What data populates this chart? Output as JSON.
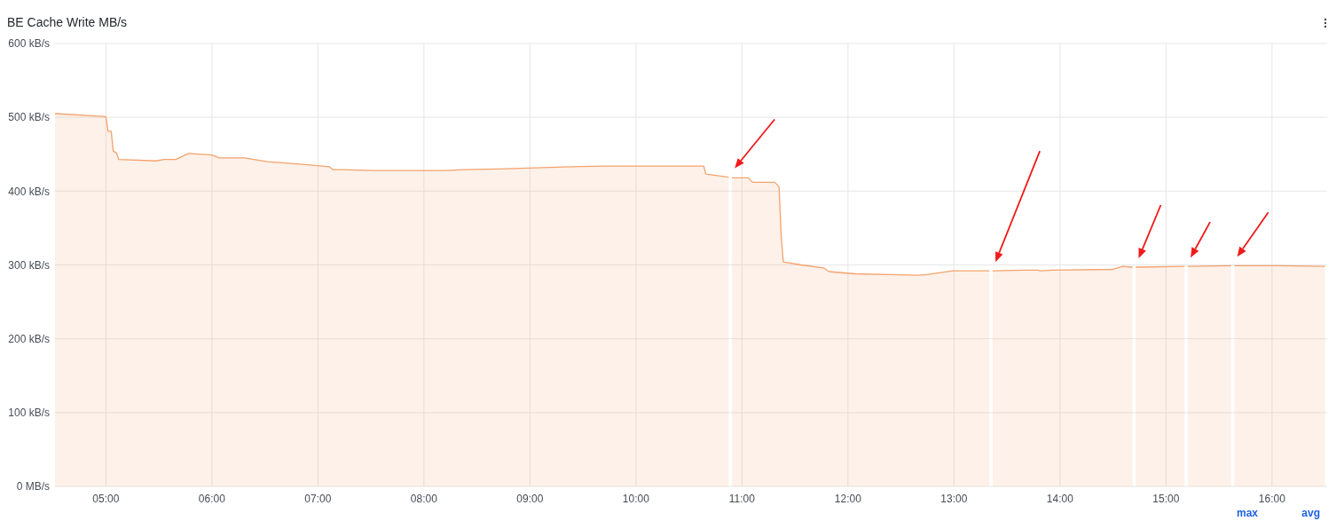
{
  "chart_data": {
    "type": "area",
    "title": "BE Cache Write MB/s",
    "x": [
      4.52,
      5.0,
      5.02,
      5.05,
      5.07,
      5.1,
      5.12,
      5.47,
      5.55,
      5.66,
      5.78,
      6.0,
      6.07,
      6.31,
      6.52,
      6.88,
      7.11,
      7.14,
      7.23,
      7.53,
      8.2,
      8.37,
      8.71,
      9.38,
      9.71,
      10.64,
      10.66,
      10.875,
      10.89,
      10.905,
      11.06,
      11.1,
      11.31,
      11.35,
      11.37,
      11.39,
      11.56,
      11.77,
      11.82,
      12.07,
      12.4,
      12.66,
      12.74,
      12.99,
      13.335,
      13.35,
      13.365,
      13.66,
      13.79,
      13.82,
      13.92,
      14.5,
      14.59,
      14.685,
      14.7,
      14.715,
      15.175,
      15.19,
      15.205,
      15.615,
      15.63,
      15.645,
      15.93,
      16.06,
      16.5
    ],
    "series": [
      {
        "color": "#f4a26c",
        "values": [
          505,
          501,
          481,
          481,
          454,
          452,
          443,
          441,
          443,
          443,
          451,
          449,
          445,
          445,
          440,
          436,
          433,
          429,
          429,
          428,
          428,
          429,
          430,
          433,
          434,
          434,
          423,
          419,
          null,
          418,
          418,
          412,
          412,
          406,
          340,
          304,
          300,
          296,
          291,
          288,
          287,
          286,
          287,
          292,
          292,
          null,
          292,
          293,
          293,
          292,
          293,
          294,
          298,
          297,
          null,
          297,
          298,
          null,
          298,
          299,
          null,
          299,
          299,
          299,
          298
        ]
      }
    ],
    "xlim": [
      4.52,
      16.52
    ],
    "xticks": [
      {
        "value": 5,
        "label": "05:00"
      },
      {
        "value": 6,
        "label": "06:00"
      },
      {
        "value": 7,
        "label": "07:00"
      },
      {
        "value": 8,
        "label": "08:00"
      },
      {
        "value": 9,
        "label": "09:00"
      },
      {
        "value": 10,
        "label": "10:00"
      },
      {
        "value": 11,
        "label": "11:00"
      },
      {
        "value": 12,
        "label": "12:00"
      },
      {
        "value": 13,
        "label": "13:00"
      },
      {
        "value": 14,
        "label": "14:00"
      },
      {
        "value": 15,
        "label": "15:00"
      },
      {
        "value": 16,
        "label": "16:00"
      }
    ],
    "ylim": [
      0,
      600
    ],
    "yticks": [
      {
        "value": 0,
        "label": "0 MB/s"
      },
      {
        "value": 100,
        "label": "100 kB/s"
      },
      {
        "value": 200,
        "label": "200 kB/s"
      },
      {
        "value": 300,
        "label": "300 kB/s"
      },
      {
        "value": 400,
        "label": "400 kB/s"
      },
      {
        "value": 500,
        "label": "500 kB/s"
      },
      {
        "value": 600,
        "label": "600 kB/s"
      }
    ],
    "grid": true,
    "annotations": [
      "max",
      "avg"
    ]
  }
}
